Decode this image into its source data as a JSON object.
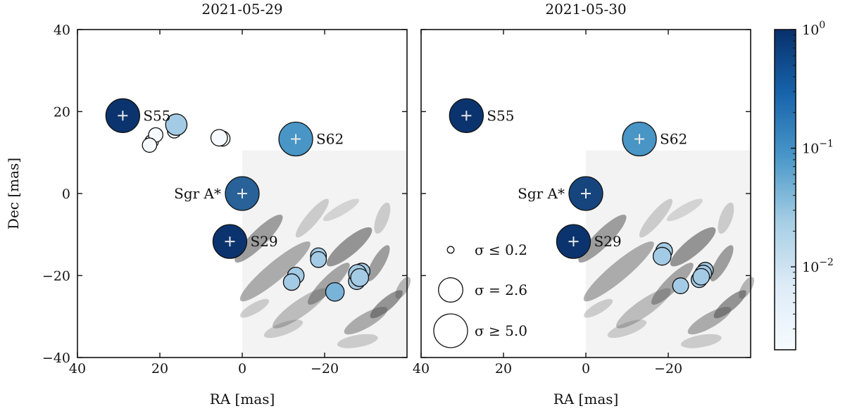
{
  "chart_data": [
    {
      "type": "scatter",
      "title": "2021-05-29",
      "xlabel": "RA [mas]",
      "ylabel": "Dec [mas]",
      "xlim": [
        40,
        -40
      ],
      "ylim": [
        -40,
        40
      ],
      "xticks": [
        40,
        20,
        0,
        -20
      ],
      "yticks": [
        40,
        20,
        0,
        -20,
        -40
      ],
      "xtick_labels": [
        "40",
        "20",
        "0",
        "−20"
      ],
      "ytick_labels": [
        "40",
        "20",
        "0",
        "−20",
        "−40"
      ],
      "image_region": {
        "x_from": 0,
        "y_to": 10.5
      },
      "sources": [
        {
          "label": "S55",
          "ra": 29,
          "dec": 19,
          "sigma": 5.0,
          "flux": 0.9,
          "cross": true
        },
        {
          "label": "S62",
          "ra": -13,
          "dec": 13.3,
          "sigma": 5.0,
          "flux": 0.09,
          "cross": true
        },
        {
          "label": "Sgr A*",
          "ra": 0,
          "dec": 0,
          "sigma": 5.0,
          "flux": 0.3,
          "cross": true
        },
        {
          "label": "S29",
          "ra": 3,
          "dec": -11.7,
          "sigma": 5.0,
          "flux": 0.9,
          "cross": true
        },
        {
          "label": "",
          "ra": 16,
          "dec": 16.8,
          "sigma": 2.0,
          "flux": 0.012,
          "cross": false
        },
        {
          "label": "",
          "ra": 16.5,
          "dec": 15.2,
          "sigma": 0.8,
          "flux": 0.002,
          "cross": false
        },
        {
          "label": "",
          "ra": 21,
          "dec": 14.3,
          "sigma": 0.9,
          "flux": 0.002,
          "cross": false
        },
        {
          "label": "",
          "ra": 22,
          "dec": 12.7,
          "sigma": 0.8,
          "flux": 0.002,
          "cross": false
        },
        {
          "label": "",
          "ra": 22.5,
          "dec": 11.8,
          "sigma": 0.9,
          "flux": 0.002,
          "cross": false
        },
        {
          "label": "",
          "ra": 5.6,
          "dec": 13.6,
          "sigma": 1.2,
          "flux": 0.002,
          "cross": false
        },
        {
          "label": "",
          "ra": 4.8,
          "dec": 13.4,
          "sigma": 1.0,
          "flux": 0.002,
          "cross": false
        },
        {
          "label": "",
          "ra": -18.5,
          "dec": -15.2,
          "sigma": 1.1,
          "flux": 0.012,
          "cross": false
        },
        {
          "label": "",
          "ra": -18.5,
          "dec": -16.1,
          "sigma": 1.1,
          "flux": 0.012,
          "cross": false
        },
        {
          "label": "",
          "ra": -13,
          "dec": -20,
          "sigma": 1.2,
          "flux": 0.012,
          "cross": false
        },
        {
          "label": "",
          "ra": -12,
          "dec": -21.6,
          "sigma": 1.2,
          "flux": 0.012,
          "cross": false
        },
        {
          "label": "",
          "ra": -22.5,
          "dec": -24,
          "sigma": 1.5,
          "flux": 0.03,
          "cross": false
        },
        {
          "label": "",
          "ra": -28,
          "dec": -19.5,
          "sigma": 1.4,
          "flux": 0.012,
          "cross": false
        },
        {
          "label": "",
          "ra": -28.5,
          "dec": -20.5,
          "sigma": 1.4,
          "flux": 0.012,
          "cross": false
        },
        {
          "label": "",
          "ra": -27.8,
          "dec": -21.4,
          "sigma": 1.2,
          "flux": 0.012,
          "cross": false
        },
        {
          "label": "",
          "ra": -29,
          "dec": -19,
          "sigma": 1.2,
          "flux": 0.012,
          "cross": false
        }
      ]
    },
    {
      "type": "scatter",
      "title": "2021-05-30",
      "xlabel": "RA [mas]",
      "ylabel": "",
      "xlim": [
        40,
        -40
      ],
      "ylim": [
        -40,
        40
      ],
      "xticks": [
        40,
        20,
        0,
        -20
      ],
      "yticks": [
        40,
        20,
        0,
        -20,
        -40
      ],
      "xtick_labels": [
        "40",
        "20",
        "0",
        "−20"
      ],
      "ytick_labels": [],
      "image_region": {
        "x_from": 0,
        "y_to": 10.5
      },
      "sources": [
        {
          "label": "S55",
          "ra": 29,
          "dec": 19,
          "sigma": 5.0,
          "flux": 0.9,
          "cross": true
        },
        {
          "label": "S62",
          "ra": -13,
          "dec": 13.3,
          "sigma": 5.0,
          "flux": 0.09,
          "cross": true
        },
        {
          "label": "Sgr A*",
          "ra": 0,
          "dec": 0,
          "sigma": 5.0,
          "flux": 0.6,
          "cross": true
        },
        {
          "label": "S29",
          "ra": 3,
          "dec": -11.7,
          "sigma": 5.0,
          "flux": 0.9,
          "cross": true
        },
        {
          "label": "",
          "ra": -19,
          "dec": -14,
          "sigma": 1.2,
          "flux": 0.012,
          "cross": false
        },
        {
          "label": "",
          "ra": -18.5,
          "dec": -15.3,
          "sigma": 1.4,
          "flux": 0.012,
          "cross": false
        },
        {
          "label": "",
          "ra": -23,
          "dec": -22.5,
          "sigma": 1.1,
          "flux": 0.012,
          "cross": false
        },
        {
          "label": "",
          "ra": -28.5,
          "dec": -19.5,
          "sigma": 1.2,
          "flux": 0.012,
          "cross": false
        },
        {
          "label": "",
          "ra": -28,
          "dec": -20.3,
          "sigma": 1.2,
          "flux": 0.012,
          "cross": false
        },
        {
          "label": "",
          "ra": -27.5,
          "dec": -21,
          "sigma": 1.1,
          "flux": 0.012,
          "cross": false
        },
        {
          "label": "",
          "ra": -29,
          "dec": -18.7,
          "sigma": 1.1,
          "flux": 0.012,
          "cross": false
        }
      ],
      "legend": {
        "position": "lower-left",
        "entries": [
          {
            "label": "σ ≤ 0.2",
            "sigma": 0.2
          },
          {
            "label": "σ = 2.6",
            "sigma": 2.6
          },
          {
            "label": "σ ≥ 5.0",
            "sigma": 5.0
          }
        ]
      }
    }
  ],
  "colorbar": {
    "scale": "log",
    "range": [
      0.002,
      1
    ],
    "ticks": [
      {
        "value": 1,
        "base": "10",
        "exp": "0"
      },
      {
        "value": 0.1,
        "base": "10",
        "exp": "−1"
      },
      {
        "value": 0.01,
        "base": "10",
        "exp": "−2"
      }
    ],
    "color_low": "#f7fbff",
    "color_mid": "#4a98c9",
    "color_high": "#08306b"
  }
}
